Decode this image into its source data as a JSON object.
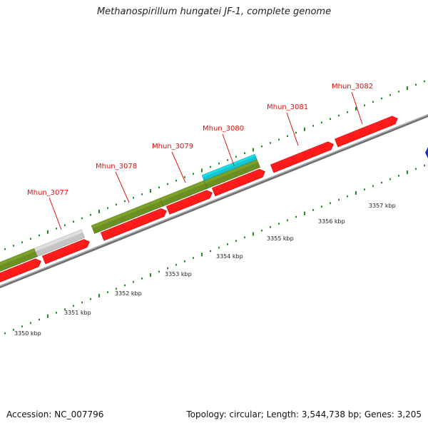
{
  "title": "Methanospirillum hungatei JF-1, complete genome",
  "footer": {
    "accession": "Accession: NC_007796",
    "summary": "Topology: circular; Length: 3,544,738 bp; Genes: 3,205"
  },
  "colors": {
    "background": "#ffffff",
    "backbone": "#8c8c8c",
    "forward_cds": "#ff1a1a",
    "reverse_olive": "#6b8f23",
    "reverse_grey": "#c4c4c4",
    "reverse_cyan": "#16c5cf",
    "label": "#dd1111",
    "ruler_tick": "#1e8c1e",
    "edge_feature": "#1a2bd1"
  },
  "gene_labels": [
    {
      "name": "Mhun_3077"
    },
    {
      "name": "Mhun_3078"
    },
    {
      "name": "Mhun_3079"
    },
    {
      "name": "Mhun_3080"
    },
    {
      "name": "Mhun_3081"
    },
    {
      "name": "Mhun_3082"
    }
  ],
  "scale_labels": [
    "3350 kbp",
    "3351 kbp",
    "3352 kbp",
    "3353 kbp",
    "3354 kbp",
    "3355 kbp",
    "3356 kbp",
    "3357 kbp"
  ],
  "forward_features": [
    {
      "kind": "cds",
      "color": "forward_cds",
      "strand": "forward"
    },
    {
      "kind": "cds",
      "color": "forward_cds",
      "strand": "forward"
    },
    {
      "kind": "cds",
      "color": "forward_cds",
      "strand": "forward"
    },
    {
      "kind": "cds",
      "color": "forward_cds",
      "strand": "forward"
    },
    {
      "kind": "cds",
      "color": "forward_cds",
      "strand": "forward"
    },
    {
      "kind": "cds",
      "color": "forward_cds",
      "strand": "forward"
    },
    {
      "kind": "cds",
      "color": "forward_cds",
      "strand": "forward"
    },
    {
      "kind": "cds",
      "color": "forward_cds",
      "strand": "forward"
    }
  ],
  "reverse_features": [
    {
      "kind": "gene",
      "color": "reverse_olive"
    },
    {
      "kind": "gene",
      "color": "reverse_grey"
    },
    {
      "kind": "gene",
      "color": "reverse_olive"
    },
    {
      "kind": "gene",
      "color": "reverse_olive"
    },
    {
      "kind": "gene",
      "color": "reverse_olive"
    },
    {
      "kind": "gene",
      "color": "reverse_cyan"
    }
  ]
}
